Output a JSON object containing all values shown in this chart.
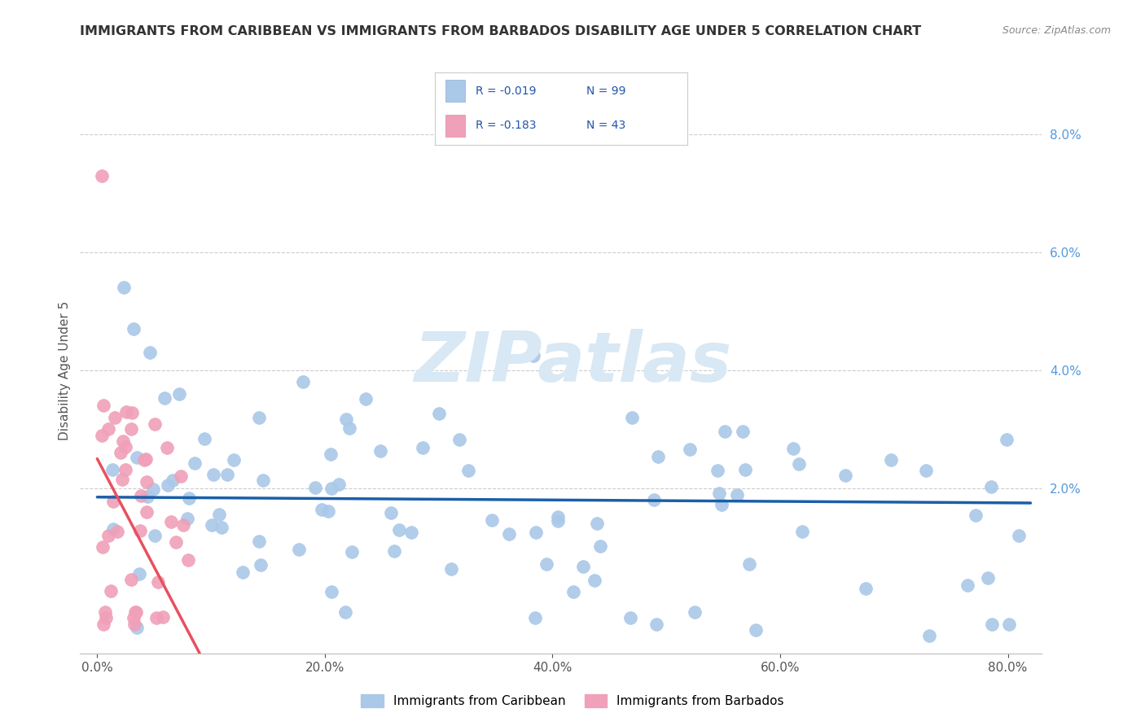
{
  "title": "IMMIGRANTS FROM CARIBBEAN VS IMMIGRANTS FROM BARBADOS DISABILITY AGE UNDER 5 CORRELATION CHART",
  "source": "Source: ZipAtlas.com",
  "xlabel_ticks": [
    "0.0%",
    "20.0%",
    "40.0%",
    "60.0%",
    "80.0%"
  ],
  "xlabel_tick_vals": [
    0.0,
    0.2,
    0.4,
    0.6,
    0.8
  ],
  "ylabel_ticks": [
    "2.0%",
    "4.0%",
    "6.0%",
    "8.0%"
  ],
  "ylabel_tick_vals": [
    0.02,
    0.04,
    0.06,
    0.08
  ],
  "ylabel_label": "Disability Age Under 5",
  "xlim": [
    -0.015,
    0.83
  ],
  "ylim": [
    -0.008,
    0.088
  ],
  "legend1_R": "R = -0.019",
  "legend1_N": "N = 99",
  "legend2_R": "R = -0.183",
  "legend2_N": "N = 43",
  "legend_label1": "Immigrants from Caribbean",
  "legend_label2": "Immigrants from Barbados",
  "color_blue": "#aac8e8",
  "color_pink": "#f0a0b8",
  "trendline_blue": "#1a5fa8",
  "trendline_pink": "#e85060",
  "watermark_color": "#d8e8f4",
  "grid_color": "#cccccc",
  "right_tick_color": "#5599dd",
  "title_color": "#333333",
  "source_color": "#888888",
  "legend_text_color": "#2255aa",
  "ylabel_color": "#555555",
  "xtick_color": "#555555",
  "blue_trend_y0": 0.0185,
  "blue_trend_y1": 0.0175,
  "pink_trend_y0": 0.025,
  "pink_trend_y1": -0.008
}
